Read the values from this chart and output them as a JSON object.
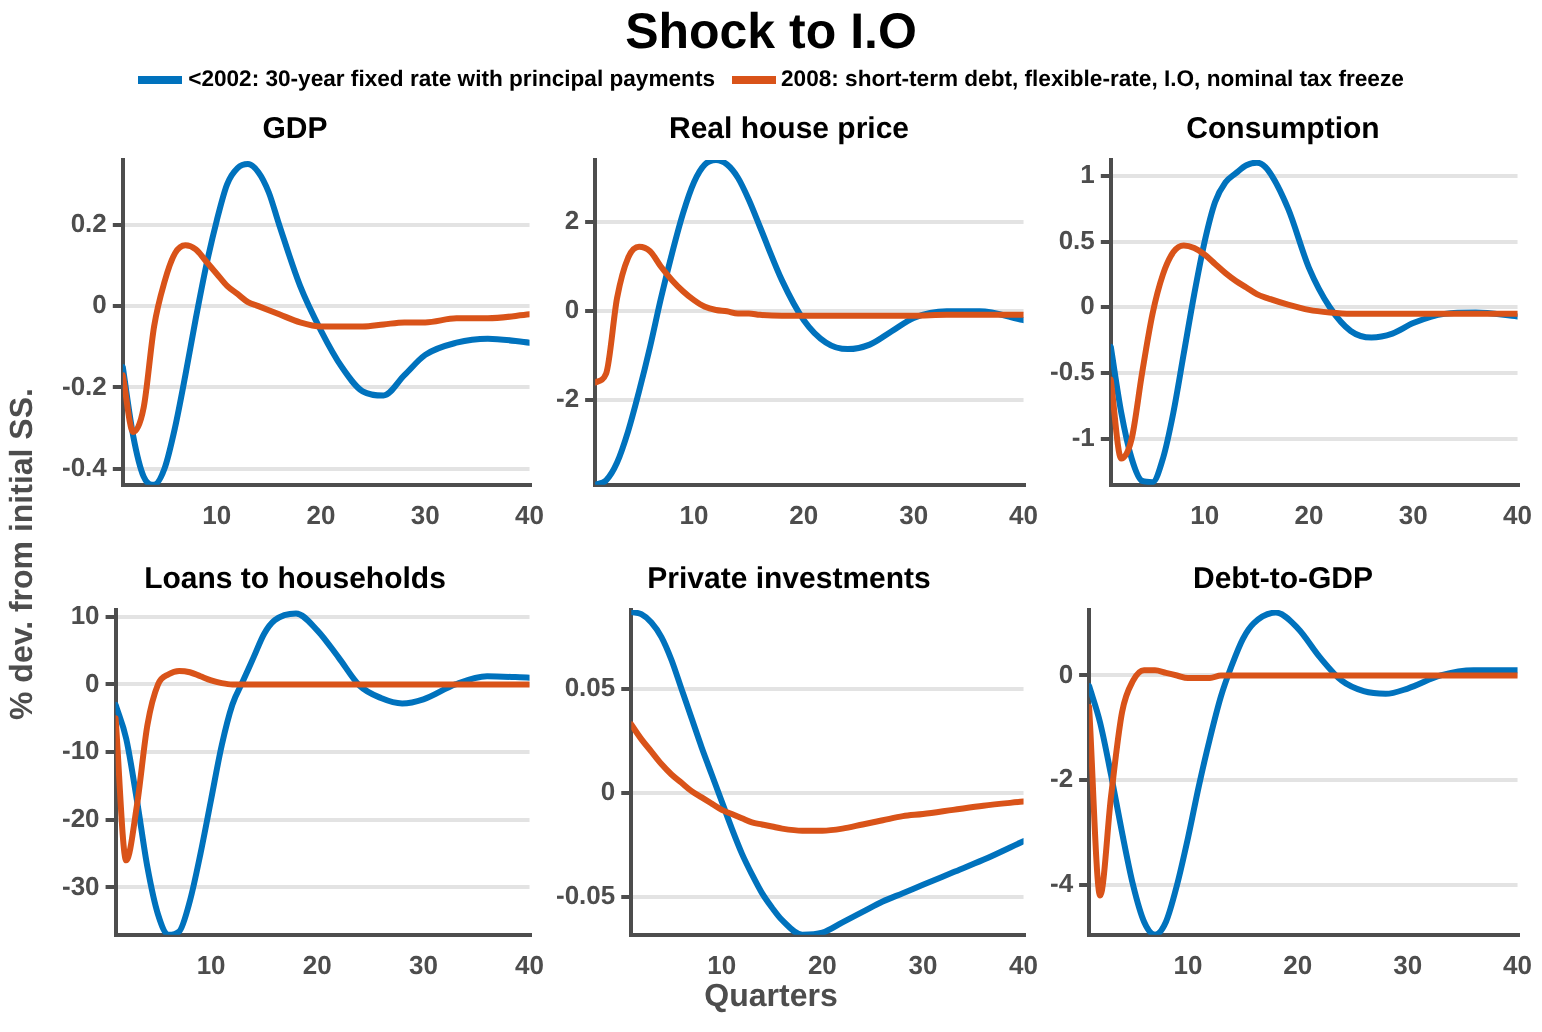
{
  "chart_data": [
    {
      "type": "other",
      "title": "Shock to I.O",
      "xlabel": "Quarters",
      "ylabel": "% dev. from initial SS."
    },
    {
      "type": "line",
      "title": "GDP",
      "legend": "top",
      "grid": "y",
      "xlim": [
        1,
        40
      ],
      "xticks": [
        10,
        20,
        30,
        40
      ],
      "ylim": [
        -0.44,
        0.36
      ],
      "yticks": [
        -0.4,
        -0.2,
        0,
        0.2
      ],
      "x": [
        1,
        2,
        3,
        4,
        5,
        6,
        7,
        8,
        9,
        10,
        11,
        12,
        13,
        14,
        15,
        16,
        18,
        20,
        22,
        24,
        26,
        28,
        30,
        33,
        36,
        40
      ],
      "series": [
        {
          "name": "<2002: 30-year fixed rate with principal payments",
          "color": "#0072bd",
          "values": [
            -0.15,
            -0.32,
            -0.42,
            -0.44,
            -0.4,
            -0.3,
            -0.17,
            -0.03,
            0.1,
            0.21,
            0.3,
            0.34,
            0.35,
            0.33,
            0.28,
            0.2,
            0.05,
            -0.06,
            -0.15,
            -0.21,
            -0.22,
            -0.17,
            -0.12,
            -0.09,
            -0.08,
            -0.09
          ]
        },
        {
          "name": "2008: short-term debt, flexible-rate, I.O, nominal tax freeze",
          "color": "#d95319",
          "values": [
            -0.17,
            -0.31,
            -0.25,
            -0.05,
            0.06,
            0.13,
            0.15,
            0.14,
            0.11,
            0.08,
            0.05,
            0.03,
            0.01,
            0,
            -0.01,
            -0.02,
            -0.04,
            -0.05,
            -0.05,
            -0.05,
            -0.045,
            -0.04,
            -0.04,
            -0.03,
            -0.03,
            -0.02
          ]
        }
      ]
    },
    {
      "type": "line",
      "title": "Real house price",
      "grid": "y",
      "xlim": [
        1,
        40
      ],
      "xticks": [
        10,
        20,
        30,
        40
      ],
      "ylim": [
        -3.9,
        3.4
      ],
      "yticks": [
        -2,
        0,
        2
      ],
      "x": [
        1,
        2,
        3,
        4,
        5,
        6,
        7,
        8,
        9,
        10,
        11,
        12,
        13,
        14,
        15,
        16,
        18,
        20,
        22,
        24,
        26,
        28,
        30,
        33,
        36,
        40
      ],
      "series": [
        {
          "color": "#0072bd",
          "values": [
            -3.9,
            -3.8,
            -3.4,
            -2.7,
            -1.8,
            -0.8,
            0.3,
            1.3,
            2.2,
            2.9,
            3.3,
            3.4,
            3.3,
            3,
            2.5,
            1.9,
            0.7,
            -0.2,
            -0.7,
            -0.85,
            -0.75,
            -0.45,
            -0.15,
            0,
            0,
            -0.2
          ]
        },
        {
          "color": "#d95319",
          "values": [
            -1.6,
            -1.4,
            0.3,
            1.2,
            1.45,
            1.35,
            1,
            0.7,
            0.45,
            0.25,
            0.1,
            0.03,
            0,
            -0.05,
            -0.05,
            -0.08,
            -0.1,
            -0.1,
            -0.1,
            -0.1,
            -0.1,
            -0.1,
            -0.1,
            -0.08,
            -0.08,
            -0.08
          ]
        }
      ]
    },
    {
      "type": "line",
      "title": "Consumption",
      "grid": "y",
      "xlim": [
        1,
        40
      ],
      "xticks": [
        10,
        20,
        30,
        40
      ],
      "ylim": [
        -1.35,
        1.12
      ],
      "yticks": [
        -1,
        -0.5,
        0,
        0.5,
        1
      ],
      "x": [
        1,
        2,
        3,
        4,
        5,
        6,
        7,
        8,
        9,
        10,
        11,
        12,
        13,
        14,
        15,
        16,
        18,
        20,
        22,
        24,
        26,
        28,
        30,
        33,
        36,
        40
      ],
      "series": [
        {
          "color": "#0072bd",
          "values": [
            -0.3,
            -0.8,
            -1.15,
            -1.32,
            -1.33,
            -1.15,
            -0.8,
            -0.35,
            0.1,
            0.5,
            0.8,
            0.95,
            1.02,
            1.08,
            1.1,
            1.05,
            0.75,
            0.3,
            0,
            -0.18,
            -0.23,
            -0.2,
            -0.12,
            -0.05,
            -0.04,
            -0.07
          ]
        },
        {
          "color": "#d95319",
          "values": [
            -0.55,
            -1.15,
            -1,
            -0.5,
            -0.05,
            0.25,
            0.42,
            0.47,
            0.45,
            0.4,
            0.33,
            0.26,
            0.2,
            0.15,
            0.1,
            0.07,
            0.02,
            -0.02,
            -0.04,
            -0.05,
            -0.05,
            -0.05,
            -0.05,
            -0.05,
            -0.05,
            -0.05
          ]
        }
      ]
    },
    {
      "type": "line",
      "title": "Loans to households",
      "grid": "y",
      "xlim": [
        1,
        40
      ],
      "xticks": [
        10,
        20,
        30,
        40
      ],
      "ylim": [
        -37,
        11
      ],
      "yticks": [
        -30,
        -20,
        -10,
        0,
        10
      ],
      "x": [
        1,
        2,
        3,
        4,
        5,
        6,
        7,
        8,
        9,
        10,
        11,
        12,
        13,
        14,
        15,
        16,
        18,
        20,
        22,
        24,
        26,
        28,
        30,
        33,
        36,
        40
      ],
      "series": [
        {
          "color": "#0072bd",
          "values": [
            -3,
            -8,
            -17,
            -27,
            -34,
            -37,
            -36.5,
            -32,
            -25,
            -17,
            -9,
            -3,
            0.5,
            4,
            7.5,
            9.5,
            10.5,
            8,
            4,
            -0.2,
            -2,
            -2.8,
            -2.2,
            0,
            1.2,
            1
          ]
        },
        {
          "color": "#d95319",
          "values": [
            -5,
            -26,
            -18,
            -6,
            0,
            1.5,
            2,
            1.8,
            1.2,
            0.6,
            0.2,
            0,
            0,
            0,
            0,
            0,
            0,
            0,
            0,
            0,
            0,
            0,
            0,
            0,
            0,
            0
          ]
        }
      ]
    },
    {
      "type": "line",
      "title": "Private investments",
      "grid": "y",
      "xlim": [
        1,
        40
      ],
      "xticks": [
        10,
        20,
        30,
        40
      ],
      "ylim": [
        -0.068,
        0.088
      ],
      "yticks": [
        -0.05,
        0,
        0.05
      ],
      "x": [
        1,
        2,
        3,
        4,
        5,
        6,
        7,
        8,
        9,
        10,
        11,
        12,
        13,
        14,
        15,
        16,
        18,
        20,
        22,
        24,
        26,
        28,
        30,
        33,
        36,
        40
      ],
      "series": [
        {
          "color": "#0072bd",
          "values": [
            0.087,
            0.086,
            0.082,
            0.075,
            0.064,
            0.05,
            0.036,
            0.022,
            0.009,
            -0.004,
            -0.017,
            -0.029,
            -0.039,
            -0.048,
            -0.055,
            -0.061,
            -0.068,
            -0.067,
            -0.062,
            -0.057,
            -0.052,
            -0.048,
            -0.044,
            -0.038,
            -0.032,
            -0.023
          ]
        },
        {
          "color": "#d95319",
          "values": [
            0.033,
            0.026,
            0.02,
            0.014,
            0.009,
            0.005,
            0.001,
            -0.002,
            -0.005,
            -0.008,
            -0.01,
            -0.012,
            -0.014,
            -0.015,
            -0.016,
            -0.017,
            -0.018,
            -0.018,
            -0.017,
            -0.015,
            -0.013,
            -0.011,
            -0.01,
            -0.008,
            -0.006,
            -0.004
          ]
        }
      ]
    },
    {
      "type": "line",
      "title": "Debt-to-GDP",
      "grid": "y",
      "xlim": [
        1,
        40
      ],
      "xticks": [
        10,
        20,
        30,
        40
      ],
      "ylim": [
        -4.95,
        1.25
      ],
      "yticks": [
        -4,
        -2,
        0
      ],
      "x": [
        1,
        2,
        3,
        4,
        5,
        6,
        7,
        8,
        9,
        10,
        11,
        12,
        13,
        14,
        15,
        16,
        18,
        20,
        22,
        24,
        26,
        28,
        30,
        33,
        36,
        40
      ],
      "series": [
        {
          "color": "#0072bd",
          "values": [
            -0.2,
            -0.9,
            -1.9,
            -3,
            -4,
            -4.7,
            -4.95,
            -4.7,
            -4,
            -3.1,
            -2.1,
            -1.2,
            -0.4,
            0.2,
            0.7,
            1,
            1.2,
            0.9,
            0.35,
            -0.1,
            -0.3,
            -0.35,
            -0.25,
            0,
            0.1,
            0.1
          ]
        },
        {
          "color": "#d95319",
          "values": [
            -0.6,
            -4.2,
            -2.3,
            -0.7,
            -0.1,
            0.1,
            0.1,
            0.05,
            0,
            -0.05,
            -0.05,
            -0.05,
            0,
            0,
            0,
            0,
            0,
            0,
            0,
            0,
            0,
            0,
            0,
            0,
            0,
            0
          ]
        }
      ]
    }
  ]
}
